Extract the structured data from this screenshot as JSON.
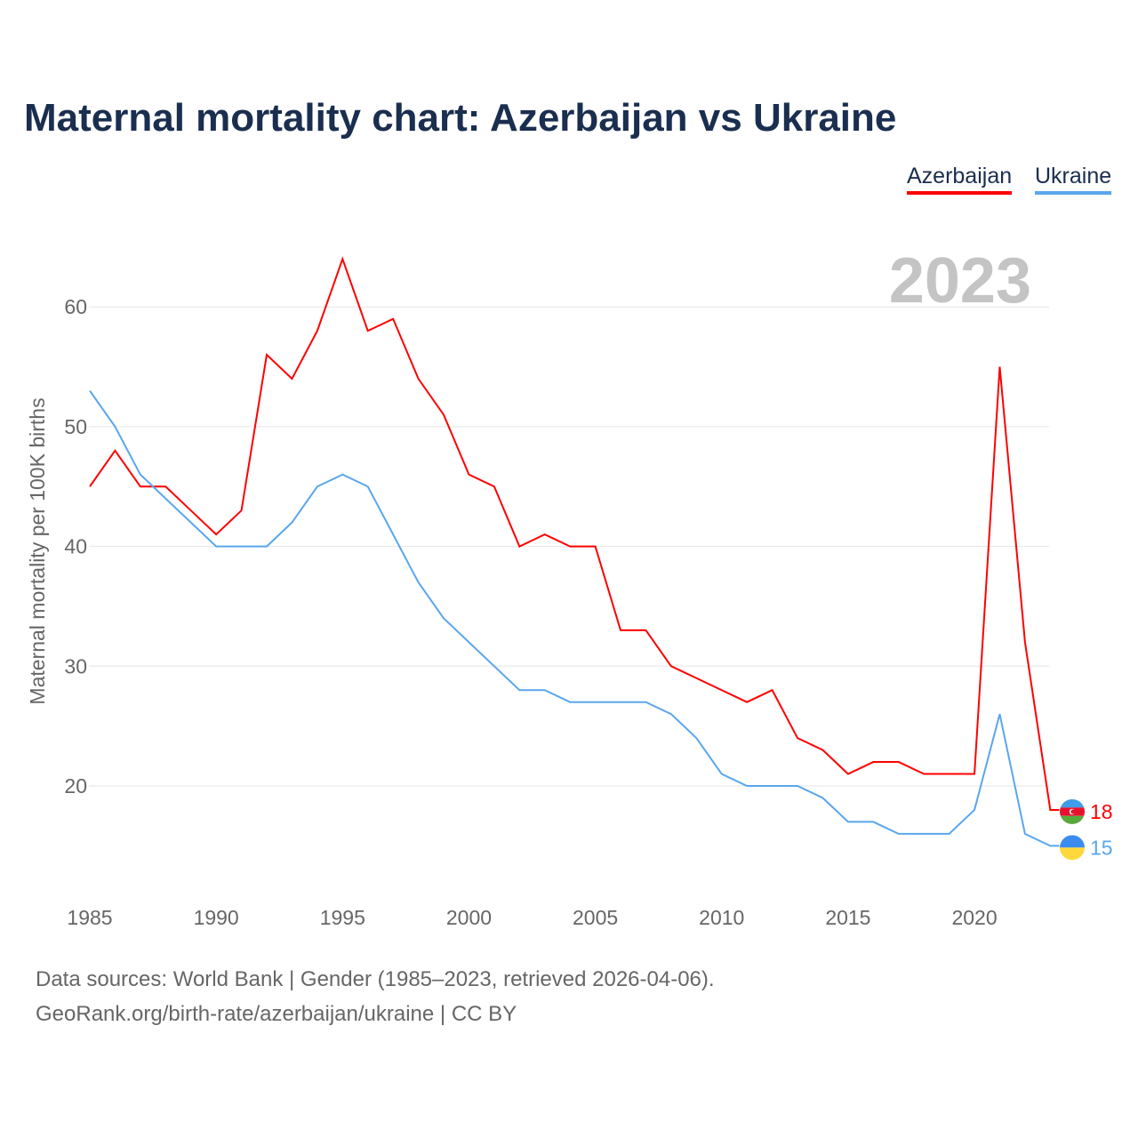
{
  "chart_data": {
    "type": "line",
    "title": "Maternal mortality chart: Azerbaijan vs Ukraine",
    "ylabel": "Maternal mortality per 100K births",
    "xlabel": "",
    "year_label": "2023",
    "xlim": [
      1985,
      2023
    ],
    "ylim": [
      12,
      66
    ],
    "yticks": [
      20,
      30,
      40,
      50,
      60
    ],
    "xticks": [
      1985,
      1990,
      1995,
      2000,
      2005,
      2010,
      2015,
      2020
    ],
    "grid": true,
    "legend_placement": "top-right",
    "x": [
      1985,
      1986,
      1987,
      1988,
      1989,
      1990,
      1991,
      1992,
      1993,
      1994,
      1995,
      1996,
      1997,
      1998,
      1999,
      2000,
      2001,
      2002,
      2003,
      2004,
      2005,
      2006,
      2007,
      2008,
      2009,
      2010,
      2011,
      2012,
      2013,
      2014,
      2015,
      2016,
      2017,
      2018,
      2019,
      2020,
      2021,
      2022,
      2023
    ],
    "series": [
      {
        "name": "Azerbaijan",
        "color": "#ff0000",
        "end_label": "18",
        "values": [
          45,
          48,
          45,
          45,
          43,
          41,
          43,
          56,
          54,
          58,
          64,
          58,
          59,
          54,
          51,
          46,
          45,
          40,
          41,
          40,
          40,
          33,
          33,
          30,
          29,
          28,
          27,
          28,
          24,
          23,
          21,
          22,
          22,
          21,
          21,
          21,
          55,
          32,
          18
        ]
      },
      {
        "name": "Ukraine",
        "color": "#5aa6ee",
        "end_label": "15",
        "values": [
          53,
          50,
          46,
          44,
          42,
          40,
          40,
          40,
          42,
          45,
          46,
          45,
          41,
          37,
          34,
          32,
          30,
          28,
          28,
          27,
          27,
          27,
          27,
          26,
          24,
          21,
          20,
          20,
          20,
          19,
          17,
          17,
          16,
          16,
          16,
          18,
          26,
          16,
          15
        ]
      }
    ]
  },
  "footer": {
    "line1": "Data sources: World Bank | Gender (1985–2023, retrieved 2026-04-06).",
    "line2": "GeoRank.org/birth-rate/azerbaijan/ukraine | CC BY"
  }
}
